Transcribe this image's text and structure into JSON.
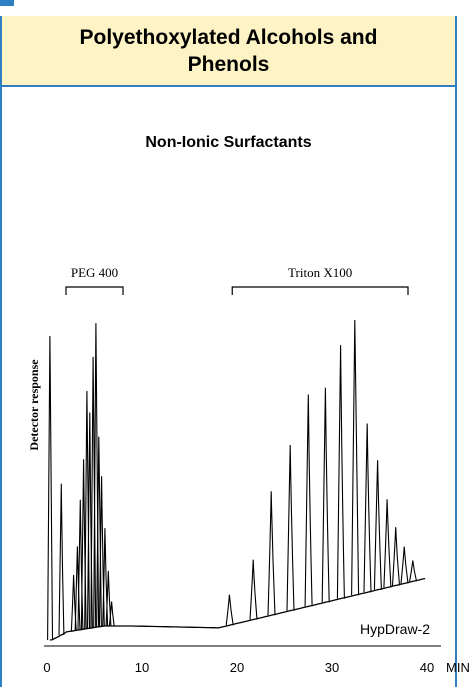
{
  "header": {
    "title": "Polyethoxylated Alcohols and Phenols"
  },
  "chart_data": {
    "type": "line",
    "title": "Non-Ionic Surfactants",
    "ylabel": "Detector response",
    "xunit": "MIN",
    "xlim": [
      0,
      40
    ],
    "x_ticks": [
      0,
      10,
      20,
      30,
      40
    ],
    "grid": false,
    "watermark": "HypDraw-2",
    "annotations": [
      {
        "label": "PEG 400",
        "start": 2,
        "end": 8
      },
      {
        "label": "Triton X100",
        "start": 19.5,
        "end": 38
      }
    ],
    "peaks": [
      {
        "t": 0.3,
        "h": 0.95
      },
      {
        "t": 1.5,
        "h": 0.48
      },
      {
        "t": 2.8,
        "h": 0.18
      },
      {
        "t": 3.2,
        "h": 0.27
      },
      {
        "t": 3.5,
        "h": 0.42
      },
      {
        "t": 3.85,
        "h": 0.55
      },
      {
        "t": 4.2,
        "h": 0.77
      },
      {
        "t": 4.5,
        "h": 0.7
      },
      {
        "t": 4.85,
        "h": 0.88
      },
      {
        "t": 5.15,
        "h": 0.99
      },
      {
        "t": 5.45,
        "h": 0.62
      },
      {
        "t": 5.75,
        "h": 0.49
      },
      {
        "t": 6.1,
        "h": 0.32
      },
      {
        "t": 6.45,
        "h": 0.18
      },
      {
        "t": 6.8,
        "h": 0.08
      },
      {
        "t": 19.2,
        "h": 0.1
      },
      {
        "t": 21.7,
        "h": 0.2
      },
      {
        "t": 23.6,
        "h": 0.42
      },
      {
        "t": 25.6,
        "h": 0.57
      },
      {
        "t": 27.5,
        "h": 0.74
      },
      {
        "t": 29.3,
        "h": 0.76
      },
      {
        "t": 30.9,
        "h": 0.91
      },
      {
        "t": 32.4,
        "h": 1.0
      },
      {
        "t": 33.7,
        "h": 0.62
      },
      {
        "t": 34.8,
        "h": 0.48
      },
      {
        "t": 35.8,
        "h": 0.33
      },
      {
        "t": 36.7,
        "h": 0.22
      },
      {
        "t": 37.6,
        "h": 0.14
      },
      {
        "t": 38.5,
        "h": 0.08
      }
    ]
  }
}
